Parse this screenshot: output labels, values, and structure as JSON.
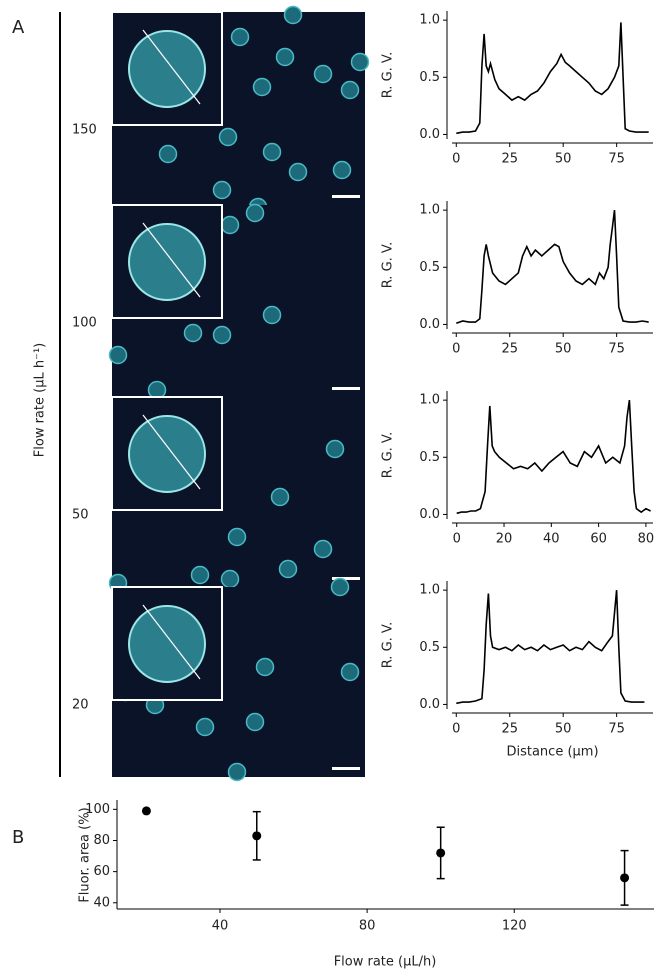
{
  "panel_labels": [
    "A",
    "B"
  ],
  "flow_rate_label": "Flow rate (µL h⁻¹)",
  "image_labels": [
    150,
    100,
    50,
    20
  ],
  "chart_data": [
    {
      "type": "line",
      "ylabel": "R. G. V.",
      "color": "#000000",
      "x": [
        0,
        3,
        6,
        9,
        11,
        12,
        13,
        14,
        15,
        16,
        18,
        20,
        23,
        26,
        29,
        32,
        35,
        38,
        41,
        44,
        47,
        49,
        51,
        53,
        56,
        59,
        62,
        65,
        68,
        71,
        74,
        76,
        77,
        78,
        79,
        81,
        84,
        87,
        90
      ],
      "values": [
        0.01,
        0.02,
        0.02,
        0.03,
        0.1,
        0.6,
        0.88,
        0.6,
        0.55,
        0.62,
        0.48,
        0.4,
        0.35,
        0.3,
        0.33,
        0.3,
        0.35,
        0.38,
        0.45,
        0.55,
        0.62,
        0.7,
        0.63,
        0.6,
        0.55,
        0.5,
        0.45,
        0.38,
        0.35,
        0.4,
        0.5,
        0.6,
        0.98,
        0.5,
        0.05,
        0.03,
        0.02,
        0.02,
        0.02
      ],
      "xlim": [
        -2,
        92
      ],
      "xticks": [
        0,
        25,
        50,
        75
      ],
      "ylim": [
        -0.04,
        1.08
      ],
      "yticks": [
        {
          "value": 0,
          "label": "0.0"
        },
        {
          "value": 0.5,
          "label": "0.5"
        },
        {
          "value": 1,
          "label": "1.0"
        }
      ]
    },
    {
      "type": "line",
      "ylabel": "R. G. V.",
      "color": "#000000",
      "x": [
        0,
        3,
        6,
        9,
        11,
        12,
        13,
        14,
        15,
        17,
        20,
        23,
        26,
        29,
        31,
        33,
        35,
        37,
        40,
        43,
        46,
        48,
        50,
        53,
        56,
        59,
        62,
        65,
        67,
        69,
        71,
        72,
        73,
        74,
        75,
        76,
        78,
        81,
        84,
        87,
        90
      ],
      "values": [
        0.01,
        0.03,
        0.02,
        0.02,
        0.05,
        0.3,
        0.6,
        0.7,
        0.6,
        0.45,
        0.38,
        0.35,
        0.4,
        0.45,
        0.6,
        0.68,
        0.6,
        0.65,
        0.6,
        0.65,
        0.7,
        0.68,
        0.55,
        0.45,
        0.38,
        0.35,
        0.4,
        0.35,
        0.45,
        0.4,
        0.5,
        0.7,
        0.85,
        1.0,
        0.6,
        0.15,
        0.03,
        0.02,
        0.02,
        0.03,
        0.02
      ],
      "xlim": [
        -2,
        92
      ],
      "xticks": [
        0,
        25,
        50,
        75
      ],
      "ylim": [
        -0.04,
        1.08
      ],
      "yticks": [
        {
          "value": 0,
          "label": "0.0"
        },
        {
          "value": 0.5,
          "label": "0.5"
        },
        {
          "value": 1,
          "label": "1.0"
        }
      ]
    },
    {
      "type": "line",
      "ylabel": "R. G. V.",
      "color": "#000000",
      "x": [
        0,
        2,
        4,
        6,
        8,
        10,
        12,
        13,
        14,
        15,
        16,
        18,
        21,
        24,
        27,
        30,
        33,
        36,
        39,
        42,
        45,
        48,
        51,
        54,
        57,
        60,
        63,
        66,
        69,
        71,
        72,
        73,
        74,
        75,
        76,
        78,
        80,
        82
      ],
      "values": [
        0.01,
        0.02,
        0.02,
        0.03,
        0.03,
        0.05,
        0.2,
        0.6,
        0.95,
        0.6,
        0.55,
        0.5,
        0.45,
        0.4,
        0.42,
        0.4,
        0.45,
        0.38,
        0.45,
        0.5,
        0.55,
        0.45,
        0.42,
        0.55,
        0.5,
        0.6,
        0.45,
        0.5,
        0.45,
        0.6,
        0.85,
        1.0,
        0.6,
        0.2,
        0.05,
        0.02,
        0.05,
        0.03
      ],
      "xlim": [
        -2,
        83
      ],
      "xticks": [
        0,
        20,
        40,
        60,
        80
      ],
      "ylim": [
        -0.04,
        1.08
      ],
      "yticks": [
        {
          "value": 0,
          "label": "0.0"
        },
        {
          "value": 0.5,
          "label": "0.5"
        },
        {
          "value": 1,
          "label": "1.0"
        }
      ]
    },
    {
      "type": "line",
      "ylabel": "R. G. V.",
      "xlabel": "Distance (µm)",
      "color": "#000000",
      "x": [
        0,
        3,
        6,
        9,
        12,
        13,
        14,
        15,
        16,
        17,
        20,
        23,
        26,
        29,
        32,
        35,
        38,
        41,
        44,
        47,
        50,
        53,
        56,
        59,
        62,
        65,
        68,
        71,
        73,
        74,
        75,
        76,
        77,
        79,
        82,
        85,
        88
      ],
      "values": [
        0.01,
        0.02,
        0.02,
        0.03,
        0.05,
        0.3,
        0.7,
        0.97,
        0.6,
        0.5,
        0.48,
        0.5,
        0.47,
        0.52,
        0.48,
        0.5,
        0.47,
        0.52,
        0.48,
        0.5,
        0.52,
        0.47,
        0.5,
        0.48,
        0.55,
        0.5,
        0.47,
        0.55,
        0.6,
        0.8,
        1.0,
        0.5,
        0.1,
        0.03,
        0.02,
        0.02,
        0.02
      ],
      "xlim": [
        -2,
        92
      ],
      "xticks": [
        0,
        25,
        50,
        75
      ],
      "ylim": [
        -0.04,
        1.08
      ],
      "yticks": [
        {
          "value": 0,
          "label": "0.0"
        },
        {
          "value": 0.5,
          "label": "0.5"
        },
        {
          "value": 1,
          "label": "1.0"
        }
      ]
    },
    {
      "type": "scatter",
      "xlabel": "Flow rate (µL/h)",
      "ylabel": "Fluor. area (%)",
      "color": "#000000",
      "x": [
        20,
        50,
        100,
        150
      ],
      "values": [
        99,
        83,
        72,
        56
      ],
      "errors": [
        null,
        15.5,
        16.5,
        17.5
      ],
      "xlim": [
        12,
        158
      ],
      "xticks": [
        40,
        80,
        120
      ],
      "ylim": [
        36,
        106
      ],
      "yticks": [
        40,
        60,
        80,
        100
      ]
    }
  ]
}
